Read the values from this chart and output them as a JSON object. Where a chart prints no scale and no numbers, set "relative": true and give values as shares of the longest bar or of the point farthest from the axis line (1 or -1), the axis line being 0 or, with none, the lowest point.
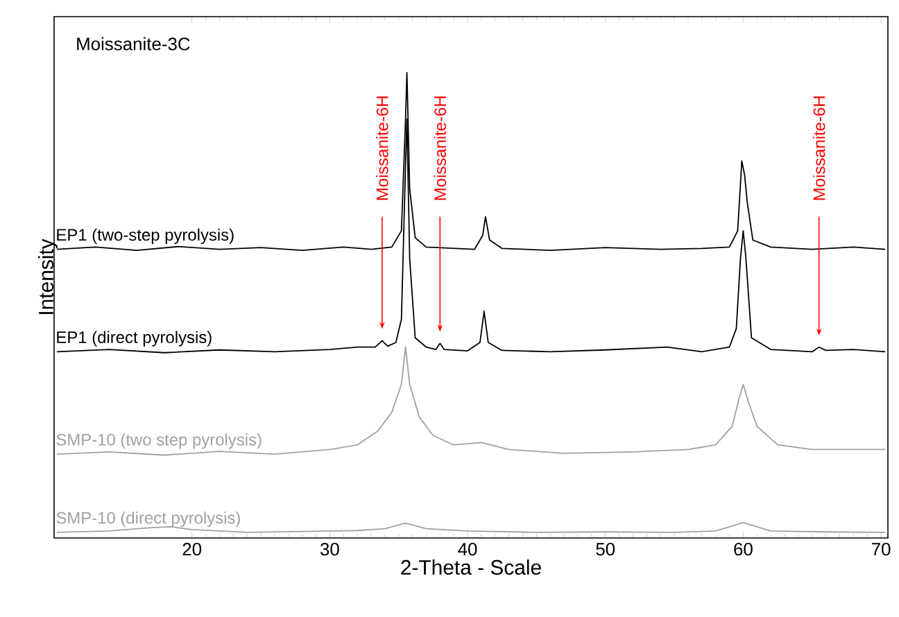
{
  "chart_data": {
    "type": "line",
    "xlabel": "2-Theta - Scale",
    "ylabel": "Intensity",
    "relative": true,
    "xlim": [
      10,
      70.5
    ],
    "xticks": [
      20,
      30,
      40,
      50,
      60,
      70
    ],
    "grid": false,
    "marker": "none",
    "line_style": "solid",
    "annotations": [
      "Moissanite-3C",
      {
        "text": "Moissanite-6H",
        "x": 33.8
      },
      {
        "text": "Moissanite-6H",
        "x": 38
      },
      {
        "text": "Moissanite-6H",
        "x": 65.5
      }
    ],
    "series": [
      {
        "name": "EP1 (two-step pyrolysis)",
        "color": "#000000",
        "x": [
          10.2,
          13,
          16,
          19,
          22,
          25,
          28,
          31,
          33,
          34.5,
          35.2,
          35.5,
          35.6,
          35.8,
          36.2,
          37,
          40.5,
          41.1,
          41.3,
          41.6,
          42.5,
          46,
          50,
          54,
          57,
          59,
          59.6,
          59.9,
          60.1,
          60.3,
          60.7,
          62,
          65,
          68,
          70.3
        ],
        "values": [
          0.62,
          0.625,
          0.618,
          0.626,
          0.62,
          0.624,
          0.618,
          0.625,
          0.62,
          0.625,
          0.66,
          0.9,
          1.0,
          0.75,
          0.645,
          0.625,
          0.62,
          0.65,
          0.69,
          0.64,
          0.622,
          0.618,
          0.624,
          0.62,
          0.622,
          0.625,
          0.66,
          0.81,
          0.78,
          0.72,
          0.64,
          0.625,
          0.62,
          0.625,
          0.62
        ]
      },
      {
        "name": "EP1 (direct pyrolysis)",
        "color": "#000000",
        "x": [
          10.2,
          14,
          18,
          22,
          26,
          30,
          32,
          33.3,
          33.8,
          34.2,
          34.8,
          35.2,
          35.5,
          35.6,
          35.8,
          36.2,
          37,
          37.7,
          38,
          38.3,
          40,
          40.9,
          41.2,
          41.5,
          42.5,
          46,
          50,
          54.5,
          57,
          59,
          59.5,
          59.8,
          60,
          60.2,
          60.6,
          62,
          65,
          65.5,
          66,
          68,
          70.3
        ],
        "values": [
          0.4,
          0.405,
          0.398,
          0.404,
          0.4,
          0.405,
          0.41,
          0.41,
          0.424,
          0.412,
          0.42,
          0.47,
          0.8,
          0.9,
          0.6,
          0.43,
          0.41,
          0.405,
          0.418,
          0.405,
          0.402,
          0.42,
          0.487,
          0.42,
          0.403,
          0.4,
          0.404,
          0.41,
          0.4,
          0.41,
          0.45,
          0.6,
          0.66,
          0.6,
          0.43,
          0.405,
          0.4,
          0.41,
          0.403,
          0.405,
          0.4
        ]
      },
      {
        "name": "SMP-10 (two step pyrolysis)",
        "color": "#a0a0a0",
        "x": [
          10.2,
          14,
          18,
          22,
          26,
          30,
          32,
          33.5,
          34.5,
          35.2,
          35.5,
          35.8,
          36.5,
          37.5,
          39,
          41,
          43,
          47,
          52,
          56,
          58,
          59.2,
          59.7,
          60,
          60.4,
          61,
          62.5,
          65,
          70.3
        ],
        "values": [
          0.18,
          0.185,
          0.178,
          0.186,
          0.18,
          0.19,
          0.2,
          0.23,
          0.27,
          0.33,
          0.41,
          0.33,
          0.26,
          0.22,
          0.2,
          0.205,
          0.19,
          0.182,
          0.185,
          0.19,
          0.2,
          0.24,
          0.3,
          0.33,
          0.29,
          0.24,
          0.2,
          0.19,
          0.19
        ]
      },
      {
        "name": "SMP-10 (direct pyrolysis)",
        "color": "#a0a0a0",
        "x": [
          10.2,
          14,
          17,
          18.5,
          20,
          24,
          28,
          32,
          34,
          35.5,
          37,
          40,
          45,
          50,
          55,
          58,
          60,
          62,
          66,
          70.3
        ],
        "values": [
          0.012,
          0.015,
          0.022,
          0.024,
          0.018,
          0.012,
          0.014,
          0.016,
          0.02,
          0.032,
          0.02,
          0.015,
          0.012,
          0.013,
          0.012,
          0.015,
          0.033,
          0.015,
          0.013,
          0.012
        ]
      }
    ]
  }
}
